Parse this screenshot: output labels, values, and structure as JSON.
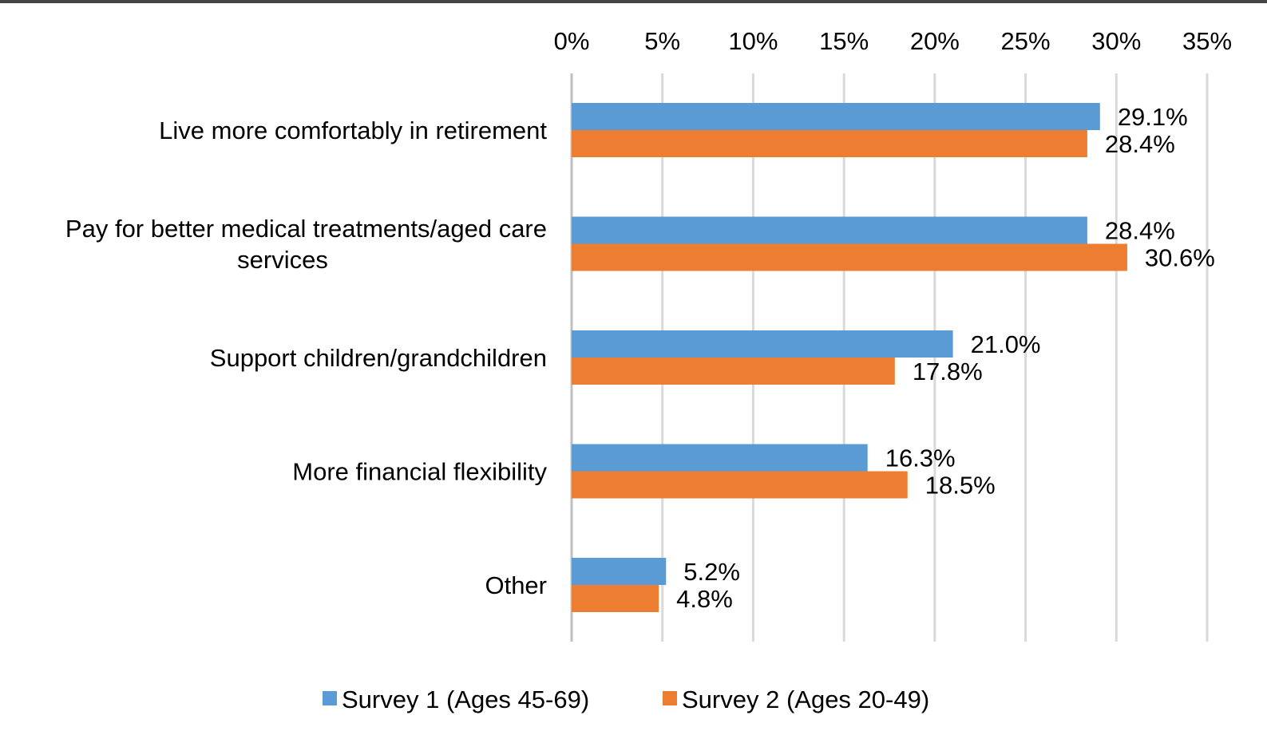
{
  "chart_data": {
    "type": "bar",
    "orientation": "horizontal",
    "categories": [
      [
        "Live more comfortably in retirement"
      ],
      [
        "Pay for better medical treatments/aged care",
        "services"
      ],
      [
        "Support  children/grandchildren"
      ],
      [
        "More financial flexibility"
      ],
      [
        "Other"
      ]
    ],
    "series": [
      {
        "name": "Survey 1 (Ages 45-69)",
        "color": "#5b9bd5",
        "values": [
          29.1,
          28.4,
          21.0,
          16.3,
          5.2
        ],
        "labels": [
          "29.1%",
          "28.4%",
          "21.0%",
          "16.3%",
          "5.2%"
        ]
      },
      {
        "name": "Survey 2 (Ages 20-49)",
        "color": "#ed7d31",
        "values": [
          28.4,
          30.6,
          17.8,
          18.5,
          4.8
        ],
        "labels": [
          "28.4%",
          "30.6%",
          "17.8%",
          "18.5%",
          "4.8%"
        ]
      }
    ],
    "xlim": [
      0,
      35
    ],
    "xticks": [
      "0%",
      "5%",
      "10%",
      "15%",
      "20%",
      "25%",
      "30%",
      "35%"
    ],
    "x_axis_position": "top",
    "grid": true,
    "gridline_color": "#d9d9d9",
    "legend_position": "bottom"
  }
}
